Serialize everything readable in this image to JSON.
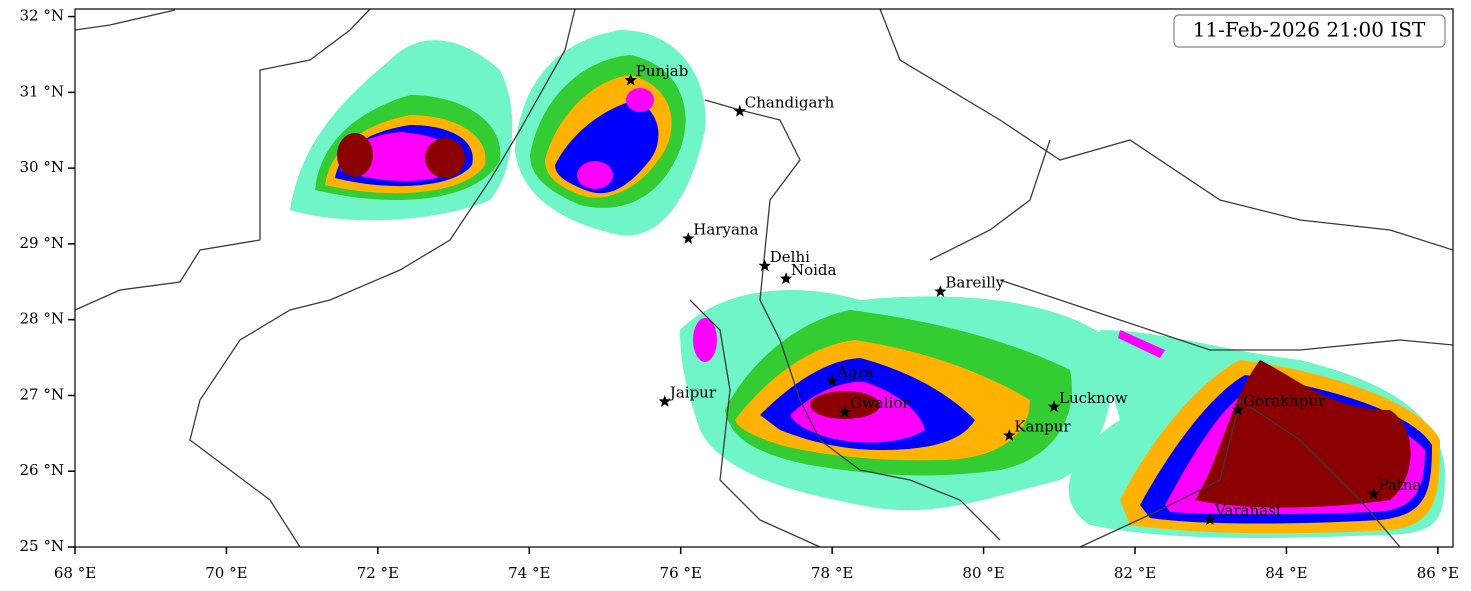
{
  "map": {
    "title": "11-Feb-2026 21:00 IST",
    "xlim": [
      68,
      86.2
    ],
    "ylim": [
      25,
      32.1
    ],
    "xticks": [
      {
        "value": 68,
        "label": "68 °E"
      },
      {
        "value": 70,
        "label": "70 °E"
      },
      {
        "value": 72,
        "label": "72 °E"
      },
      {
        "value": 74,
        "label": "74 °E"
      },
      {
        "value": 76,
        "label": "76 °E"
      },
      {
        "value": 78,
        "label": "78 °E"
      },
      {
        "value": 80,
        "label": "80 °E"
      },
      {
        "value": 82,
        "label": "82 °E"
      },
      {
        "value": 84,
        "label": "84 °E"
      },
      {
        "value": 86,
        "label": "86 °E"
      }
    ],
    "yticks": [
      {
        "value": 25,
        "label": "25 °N"
      },
      {
        "value": 26,
        "label": "26 °N"
      },
      {
        "value": 27,
        "label": "27 °N"
      },
      {
        "value": 28,
        "label": "28 °N"
      },
      {
        "value": 29,
        "label": "29 °N"
      },
      {
        "value": 30,
        "label": "30 °N"
      },
      {
        "value": 31,
        "label": "31 °N"
      },
      {
        "value": 32,
        "label": "32 °N"
      }
    ],
    "cities": [
      {
        "name": "Punjab",
        "lon": 75.34,
        "lat": 31.16
      },
      {
        "name": "Chandigarh",
        "lon": 76.78,
        "lat": 30.75
      },
      {
        "name": "Haryana",
        "lon": 76.1,
        "lat": 29.07
      },
      {
        "name": "Delhi",
        "lon": 77.11,
        "lat": 28.71
      },
      {
        "name": "Noida",
        "lon": 77.39,
        "lat": 28.54
      },
      {
        "name": "Bareilly",
        "lon": 79.43,
        "lat": 28.37
      },
      {
        "name": "Jaipur",
        "lon": 75.79,
        "lat": 26.92
      },
      {
        "name": "Agra",
        "lon": 78.0,
        "lat": 27.19
      },
      {
        "name": "Gwalior",
        "lon": 78.17,
        "lat": 26.78
      },
      {
        "name": "Lucknow",
        "lon": 80.93,
        "lat": 26.85
      },
      {
        "name": "Kanpur",
        "lon": 80.34,
        "lat": 26.47
      },
      {
        "name": "Gorakhpur",
        "lon": 83.36,
        "lat": 26.81
      },
      {
        "name": "Varanasi",
        "lon": 82.99,
        "lat": 25.36
      },
      {
        "name": "Patna",
        "lon": 85.15,
        "lat": 25.7
      }
    ]
  }
}
